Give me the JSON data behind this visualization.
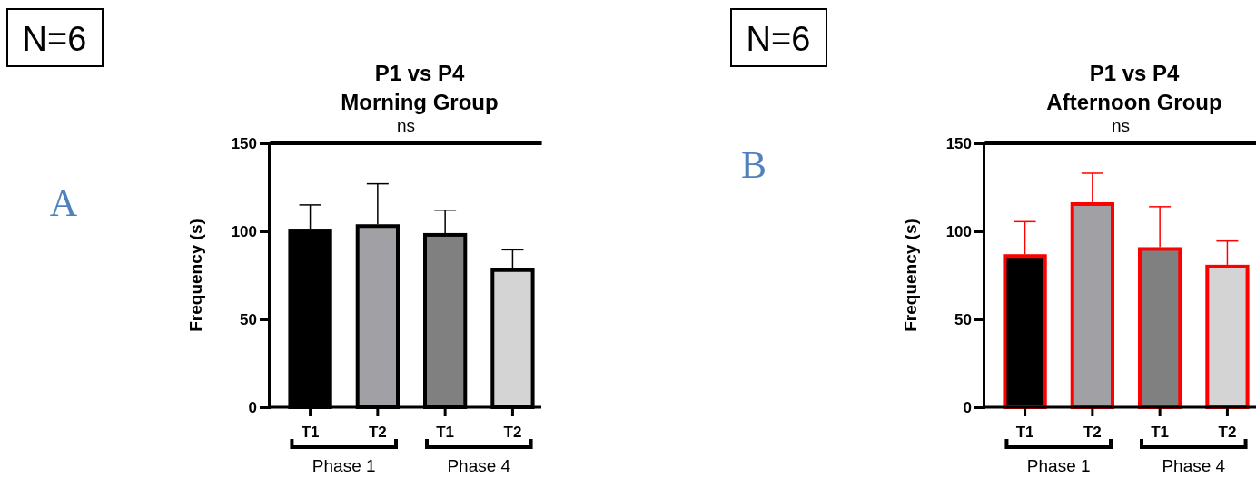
{
  "chart_data": [
    {
      "type": "bar",
      "title": "P1 vs  P4",
      "subtitle": "Morning Group",
      "ylabel": "Frequency (s)",
      "categories": [
        "T1",
        "T2",
        "T1",
        "T2"
      ],
      "series": [
        {
          "color": "#000000",
          "colors": [
            "#000000",
            "#a1a1a5",
            "#808080",
            "#d4d4d4"
          ],
          "values": [
            101,
            104,
            99,
            79
          ],
          "errors": [
            [
              101,
              115
            ],
            [
              104,
              127
            ],
            [
              99,
              112
            ],
            [
              79,
              89.5
            ]
          ]
        }
      ],
      "ylim": [
        0,
        150
      ],
      "yticks": [
        0,
        50,
        100,
        150
      ],
      "grid": false,
      "annotations": [
        "N=6",
        "A",
        "ns",
        "Phase 1",
        "Phase 4"
      ]
    },
    {
      "type": "bar",
      "title": "P1 vs  P4",
      "subtitle": "Afternoon  Group",
      "ylabel": "Frequency (s)",
      "categories": [
        "T1",
        "T2",
        "T1",
        "T2"
      ],
      "series": [
        {
          "color": "#ff0000",
          "colors": [
            "#000000",
            "#a1a1a5",
            "#808080",
            "#d4d4d4"
          ],
          "values": [
            87,
            116.5,
            91,
            81
          ],
          "errors": [
            [
              87,
              105.5
            ],
            [
              116.5,
              133
            ],
            [
              91,
              114
            ],
            [
              81,
              94.5
            ]
          ]
        }
      ],
      "ylim": [
        0,
        150
      ],
      "yticks": [
        0,
        50,
        100,
        150
      ],
      "grid": false,
      "annotations": [
        "N=6",
        "B",
        "ns",
        "Phase 1",
        "Phase 4"
      ]
    }
  ]
}
